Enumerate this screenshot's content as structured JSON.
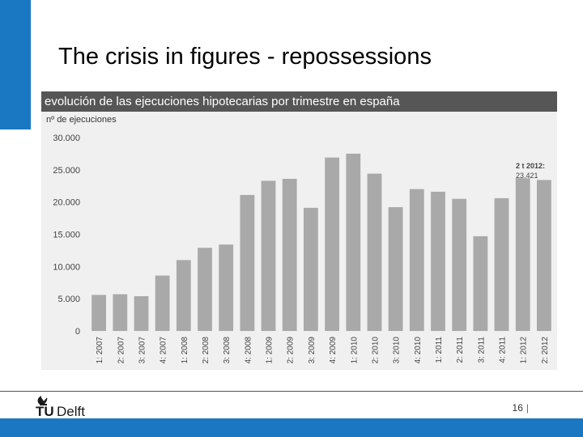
{
  "slide": {
    "title": "The crisis in figures - repossessions",
    "page_number": "16",
    "page_separator": "|"
  },
  "logo": {
    "text_tu": "TU",
    "text_delft": "Delft"
  },
  "colors": {
    "accent_blue": "#1a78c2",
    "header_gray": "#565656",
    "bar_gray": "#a9a9a9",
    "panel_bg": "#f0f0f0"
  },
  "chart_data": {
    "type": "bar",
    "title": "evolución de las ejecuciones hipotecarias por trimestre en españa",
    "ylabel": "nº de ejecuciones",
    "xlabel": "",
    "ylim": [
      0,
      30000
    ],
    "yticks": [
      0,
      5000,
      10000,
      15000,
      20000,
      25000,
      30000
    ],
    "ytick_labels": [
      "0",
      "5.000",
      "10.000",
      "15.000",
      "20.000",
      "25.000",
      "30.000"
    ],
    "grid": false,
    "categories": [
      "1: 2007",
      "2: 2007",
      "3: 2007",
      "4: 2007",
      "1: 2008",
      "2: 2008",
      "3: 2008",
      "4: 2008",
      "1: 2009",
      "2: 2009",
      "3: 2009",
      "4: 2009",
      "1: 2010",
      "2: 2010",
      "3: 2010",
      "4: 2010",
      "1: 2011",
      "2: 2011",
      "3: 2011",
      "4: 2011",
      "1: 2012",
      "2: 2012"
    ],
    "values": [
      5600,
      5700,
      5400,
      8600,
      11000,
      12900,
      13400,
      21100,
      23300,
      23600,
      19100,
      26900,
      27500,
      24400,
      19200,
      22000,
      21600,
      20500,
      14700,
      20600,
      23700,
      23421
    ],
    "annotation": {
      "title": "2 t 2012:",
      "value": "23.421"
    }
  }
}
